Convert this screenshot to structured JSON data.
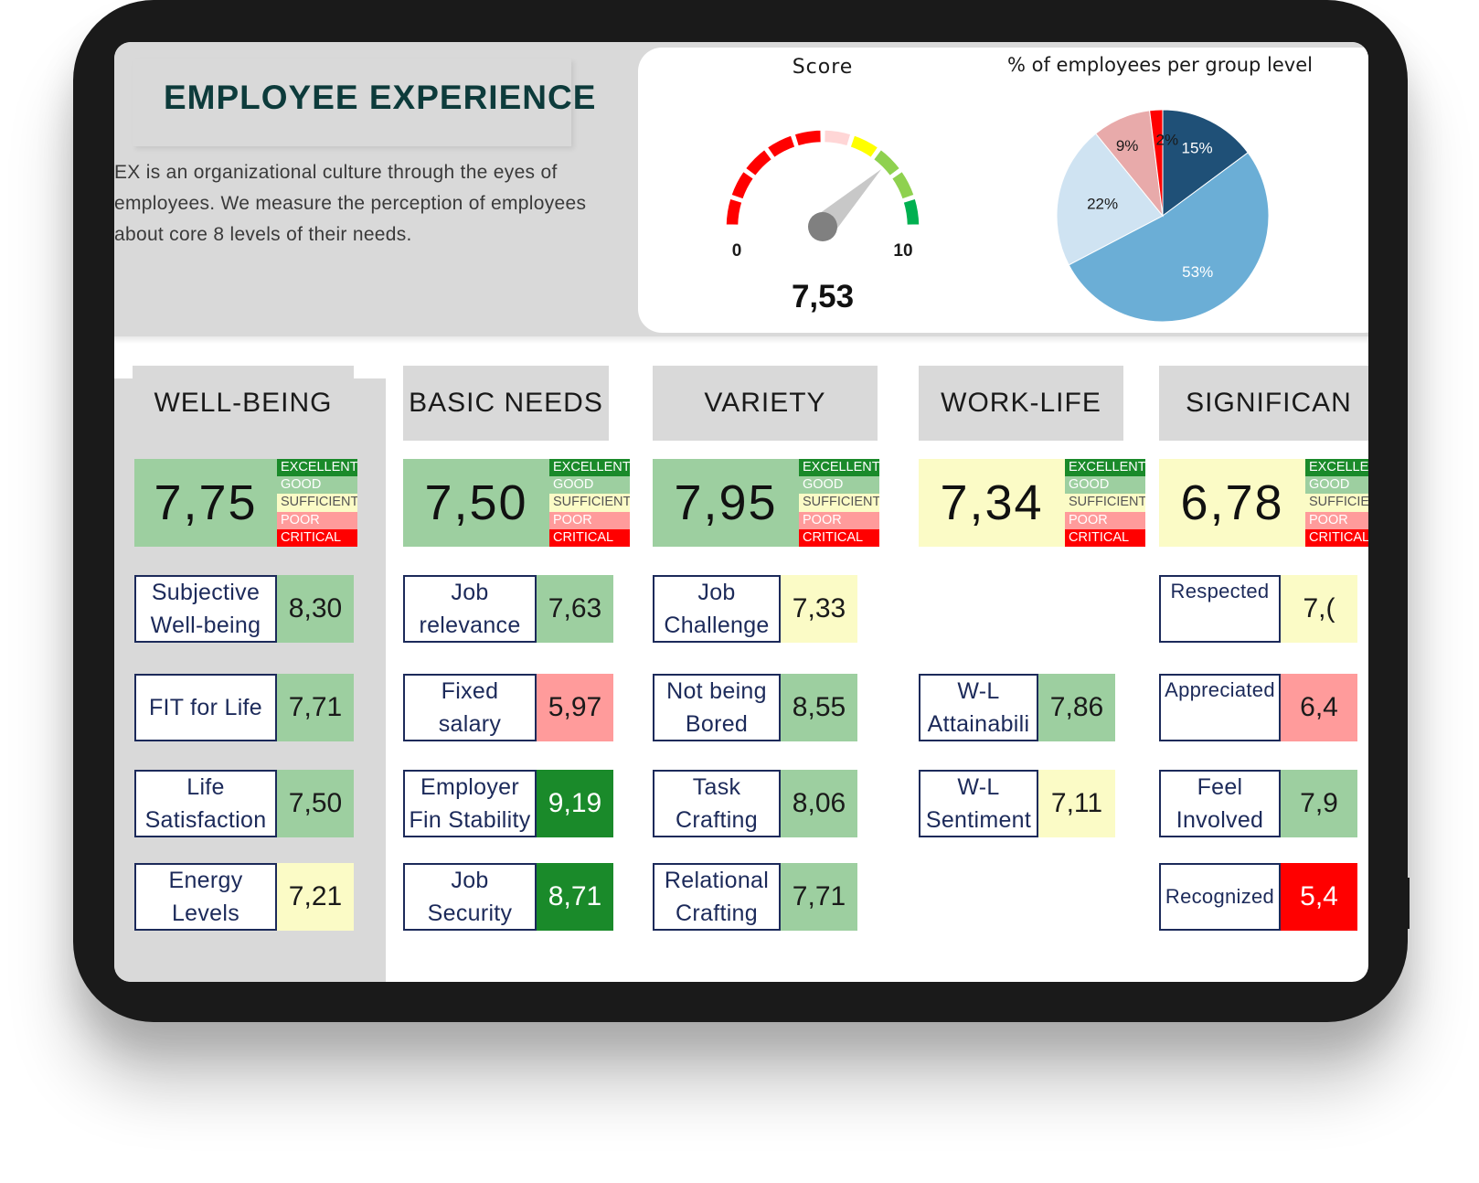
{
  "header": {
    "title": "EMPLOYEE EXPERIENCE",
    "description": "EX is an organizational culture through the eyes of employees. We measure the perception of employees about core 8 levels of their needs."
  },
  "gauge": {
    "title": "Score",
    "min_label": "0",
    "max_label": "10",
    "value": 7.53,
    "value_label": "7,53",
    "min": 0,
    "max": 10
  },
  "chart_data": {
    "type": "pie",
    "title": "% of employees per group level",
    "slices": [
      {
        "label": "15%",
        "value": 15,
        "color": "#1f5077",
        "label_color": "#ffffff"
      },
      {
        "label": "53%",
        "value": 53,
        "color": "#6baed6",
        "label_color": "#ffffff"
      },
      {
        "label": "22%",
        "value": 22,
        "color": "#cfe3f2",
        "label_color": "#1a1a1a"
      },
      {
        "label": "9%",
        "value": 9,
        "color": "#e8aaaa",
        "label_color": "#1a1a1a"
      },
      {
        "label": "2%",
        "value": 2,
        "color": "#ff0000",
        "label_color": "#1a1a1a"
      }
    ]
  },
  "legend_levels": [
    "EXCELLENT",
    "GOOD",
    "SUFFICIENT",
    "POOR",
    "CRITICAL"
  ],
  "categories": [
    {
      "name": "WELL-BEING",
      "score": "7,75",
      "score_level": "good",
      "items": [
        {
          "label": "Subjective Well-being",
          "value": "8,30",
          "level": "good"
        },
        {
          "label": "FIT for Life",
          "value": "7,71",
          "level": "good"
        },
        {
          "label": "Life Satisfaction",
          "value": "7,50",
          "level": "good"
        },
        {
          "label": "Energy Levels",
          "value": "7,21",
          "level": "suf"
        }
      ]
    },
    {
      "name": "BASIC NEEDS",
      "score": "7,50",
      "score_level": "good",
      "items": [
        {
          "label": "Job relevance",
          "value": "7,63",
          "level": "good"
        },
        {
          "label": "Fixed salary",
          "value": "5,97",
          "level": "poor"
        },
        {
          "label": "Employer Fin Stability",
          "value": "9,19",
          "level": "ex"
        },
        {
          "label": "Job Security",
          "value": "8,71",
          "level": "ex"
        }
      ]
    },
    {
      "name": "VARIETY",
      "score": "7,95",
      "score_level": "good",
      "items": [
        {
          "label": "Job Challenge",
          "value": "7,33",
          "level": "suf"
        },
        {
          "label": "Not being Bored",
          "value": "8,55",
          "level": "good"
        },
        {
          "label": "Task Crafting",
          "value": "8,06",
          "level": "good"
        },
        {
          "label": "Relational Crafting",
          "value": "7,71",
          "level": "good"
        }
      ]
    },
    {
      "name": "WORK-LIFE",
      "score": "7,34",
      "score_level": "suf",
      "items": [
        {
          "label": "W-L Attainabili",
          "value": "7,86",
          "level": "good"
        },
        {
          "label": "W-L Sentiment",
          "value": "7,11",
          "level": "suf"
        }
      ]
    },
    {
      "name": "SIGNIFICAN",
      "score": "6,78",
      "score_level": "suf",
      "items": [
        {
          "label": "Respected",
          "value": "7,(",
          "level": "suf"
        },
        {
          "label": "Appreciated",
          "value": "6,4",
          "level": "poor"
        },
        {
          "label": "Feel Involved",
          "value": "7,9",
          "level": "good"
        },
        {
          "label": "Recognized",
          "value": "5,4",
          "level": "crit"
        }
      ]
    }
  ]
}
